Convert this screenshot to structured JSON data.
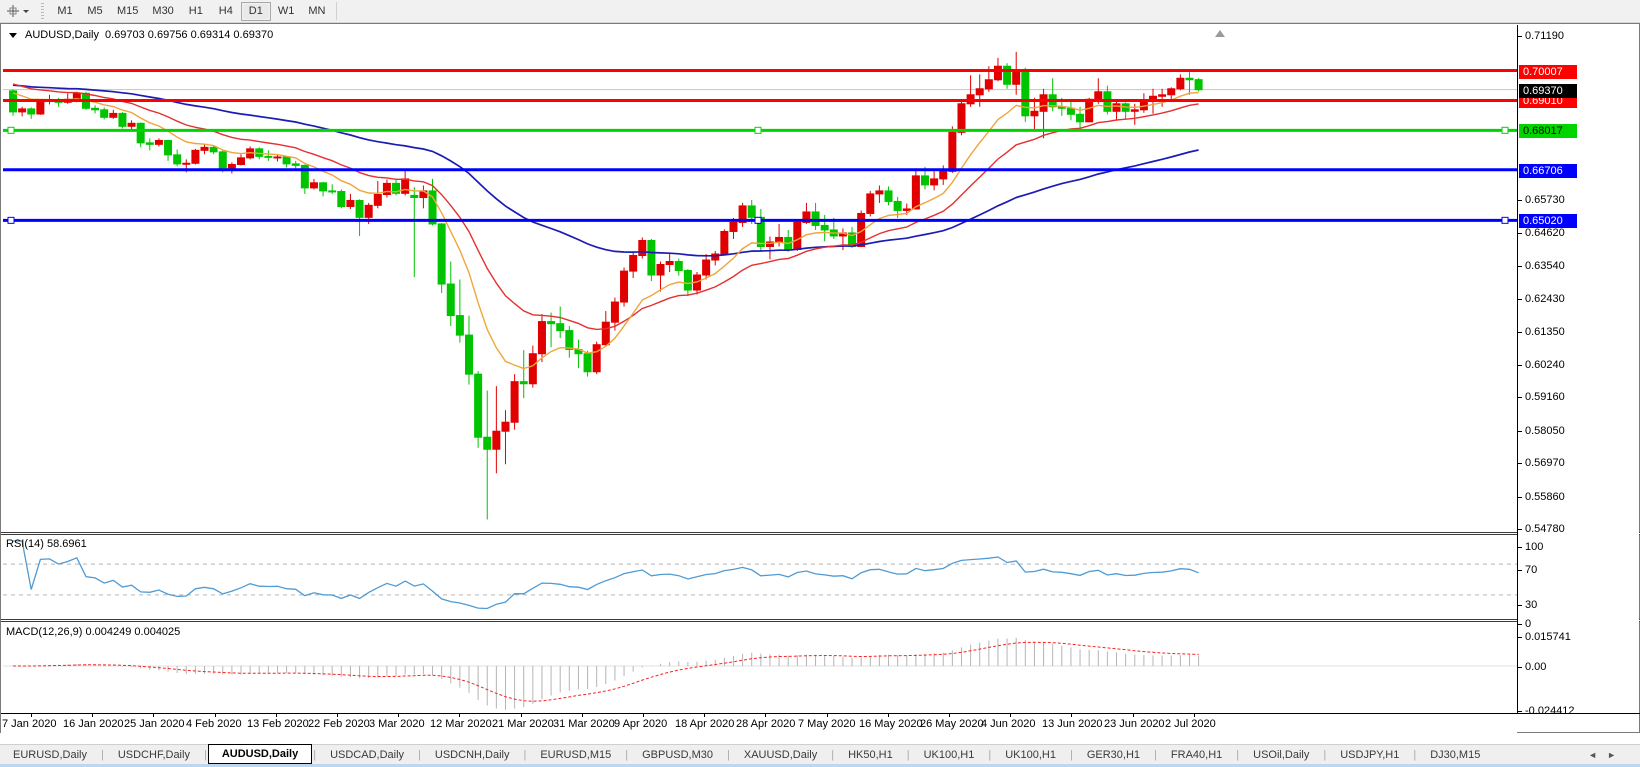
{
  "toolbar": {
    "tool_icon": "crosshair-icon",
    "timeframes": [
      "M1",
      "M5",
      "M15",
      "M30",
      "H1",
      "H4",
      "D1",
      "W1",
      "MN"
    ],
    "active_timeframe": "D1"
  },
  "chart": {
    "title_symbol": "AUDUSD,Daily",
    "title_ohlc": "0.69703 0.69756 0.69314 0.69370"
  },
  "chart_data": {
    "type": "candlestick",
    "symbol": "AUDUSD",
    "period": "Daily",
    "ohlc_display": {
      "open": "0.69703",
      "high": "0.69756",
      "low": "0.69314",
      "close": "0.69370"
    },
    "color_convention": "red-up-green-down",
    "x_labels": [
      "7 Jan 2020",
      "16 Jan 2020",
      "25 Jan 2020",
      "4 Feb 2020",
      "13 Feb 2020",
      "22 Feb 2020",
      "3 Mar 2020",
      "12 Mar 2020",
      "21 Mar 2020",
      "31 Mar 2020",
      "9 Apr 2020",
      "18 Apr 2020",
      "28 Apr 2020",
      "7 May 2020",
      "16 May 2020",
      "26 May 2020",
      "4 Jun 2020",
      "13 Jun 2020",
      "23 Jun 2020",
      "2 Jul 2020"
    ],
    "y_axis_ticks": [
      "0.71190",
      "0.65730",
      "0.64620",
      "0.63540",
      "0.62430",
      "0.61350",
      "0.60240",
      "0.59160",
      "0.58050",
      "0.56970",
      "0.55860",
      "0.54780"
    ],
    "candles": [
      [
        0.6933,
        0.6938,
        0.685,
        0.6863
      ],
      [
        0.6863,
        0.688,
        0.6848,
        0.6873
      ],
      [
        0.6873,
        0.6878,
        0.684,
        0.6856
      ],
      [
        0.6856,
        0.6905,
        0.6853,
        0.69
      ],
      [
        0.69,
        0.692,
        0.6888,
        0.6902
      ],
      [
        0.6902,
        0.691,
        0.688,
        0.6895
      ],
      [
        0.6895,
        0.6925,
        0.689,
        0.6905
      ],
      [
        0.6905,
        0.693,
        0.6895,
        0.6925
      ],
      [
        0.6925,
        0.693,
        0.687,
        0.6875
      ],
      [
        0.6875,
        0.6885,
        0.6858,
        0.687
      ],
      [
        0.687,
        0.6878,
        0.6838,
        0.6845
      ],
      [
        0.6845,
        0.687,
        0.684,
        0.6858
      ],
      [
        0.6858,
        0.6862,
        0.6808,
        0.6815
      ],
      [
        0.6815,
        0.6835,
        0.68,
        0.6825
      ],
      [
        0.6825,
        0.6828,
        0.6745,
        0.676
      ],
      [
        0.676,
        0.6775,
        0.6735,
        0.6755
      ],
      [
        0.6755,
        0.6775,
        0.6748,
        0.6768
      ],
      [
        0.6768,
        0.677,
        0.67,
        0.672
      ],
      [
        0.672,
        0.6738,
        0.6682,
        0.669
      ],
      [
        0.669,
        0.6705,
        0.6662,
        0.6692
      ],
      [
        0.6692,
        0.674,
        0.6688,
        0.6735
      ],
      [
        0.6735,
        0.6755,
        0.6722,
        0.6745
      ],
      [
        0.6745,
        0.6752,
        0.6722,
        0.673
      ],
      [
        0.673,
        0.6735,
        0.6662,
        0.667
      ],
      [
        0.667,
        0.6695,
        0.6658,
        0.6688
      ],
      [
        0.6688,
        0.6722,
        0.6685,
        0.671
      ],
      [
        0.671,
        0.6748,
        0.6705,
        0.674
      ],
      [
        0.674,
        0.6745,
        0.6705,
        0.6715
      ],
      [
        0.6715,
        0.6735,
        0.67,
        0.6712
      ],
      [
        0.6712,
        0.6722,
        0.6698,
        0.6713
      ],
      [
        0.6713,
        0.6715,
        0.6678,
        0.669
      ],
      [
        0.669,
        0.67,
        0.6668,
        0.6685
      ],
      [
        0.6685,
        0.6688,
        0.659,
        0.661
      ],
      [
        0.661,
        0.664,
        0.6605,
        0.6627
      ],
      [
        0.6627,
        0.663,
        0.6582,
        0.66
      ],
      [
        0.66,
        0.6622,
        0.659,
        0.6598
      ],
      [
        0.6598,
        0.6605,
        0.6542,
        0.6548
      ],
      [
        0.6548,
        0.659,
        0.654,
        0.6568
      ],
      [
        0.6568,
        0.6572,
        0.645,
        0.6512
      ],
      [
        0.6512,
        0.656,
        0.649,
        0.6552
      ],
      [
        0.6552,
        0.6633,
        0.6542,
        0.6588
      ],
      [
        0.6588,
        0.6638,
        0.6578,
        0.6625
      ],
      [
        0.6625,
        0.664,
        0.6585,
        0.6592
      ],
      [
        0.6592,
        0.6668,
        0.6585,
        0.664
      ],
      [
        0.6585,
        0.6612,
        0.6313,
        0.6578
      ],
      [
        0.6578,
        0.6618,
        0.6542,
        0.66
      ],
      [
        0.66,
        0.664,
        0.6485,
        0.649
      ],
      [
        0.649,
        0.6493,
        0.626,
        0.629
      ],
      [
        0.629,
        0.6365,
        0.615,
        0.6185
      ],
      [
        0.6185,
        0.6305,
        0.6095,
        0.612
      ],
      [
        0.612,
        0.6185,
        0.5955,
        0.599
      ],
      [
        0.599,
        0.6,
        0.5745,
        0.578
      ],
      [
        0.578,
        0.5935,
        0.5506,
        0.574
      ],
      [
        0.574,
        0.595,
        0.566,
        0.58
      ],
      [
        0.58,
        0.587,
        0.569,
        0.583
      ],
      [
        0.583,
        0.599,
        0.5805,
        0.5965
      ],
      [
        0.5965,
        0.607,
        0.591,
        0.5958
      ],
      [
        0.5958,
        0.6085,
        0.5945,
        0.6058
      ],
      [
        0.6058,
        0.619,
        0.603,
        0.6165
      ],
      [
        0.6165,
        0.6195,
        0.608,
        0.6158
      ],
      [
        0.6158,
        0.6215,
        0.611,
        0.6135
      ],
      [
        0.6135,
        0.615,
        0.6045,
        0.6072
      ],
      [
        0.6072,
        0.6105,
        0.601,
        0.6058
      ],
      [
        0.6058,
        0.6068,
        0.5982,
        0.5998
      ],
      [
        0.5998,
        0.6098,
        0.599,
        0.6088
      ],
      [
        0.6088,
        0.62,
        0.6085,
        0.6163
      ],
      [
        0.6163,
        0.6245,
        0.6135,
        0.623
      ],
      [
        0.623,
        0.6345,
        0.6215,
        0.6333
      ],
      [
        0.6333,
        0.6395,
        0.631,
        0.6385
      ],
      [
        0.6385,
        0.6445,
        0.6375,
        0.6435
      ],
      [
        0.6435,
        0.644,
        0.63,
        0.632
      ],
      [
        0.632,
        0.6365,
        0.6265,
        0.6355
      ],
      [
        0.6355,
        0.639,
        0.633,
        0.6365
      ],
      [
        0.6365,
        0.6375,
        0.6318,
        0.6335
      ],
      [
        0.6335,
        0.634,
        0.625,
        0.627
      ],
      [
        0.627,
        0.633,
        0.6255,
        0.632
      ],
      [
        0.632,
        0.639,
        0.6305,
        0.637
      ],
      [
        0.637,
        0.64,
        0.6352,
        0.639
      ],
      [
        0.639,
        0.6472,
        0.6385,
        0.6465
      ],
      [
        0.6465,
        0.651,
        0.644,
        0.6495
      ],
      [
        0.6495,
        0.656,
        0.648,
        0.655
      ],
      [
        0.655,
        0.657,
        0.649,
        0.6512
      ],
      [
        0.6512,
        0.654,
        0.6402,
        0.6415
      ],
      [
        0.6415,
        0.6448,
        0.6372,
        0.643
      ],
      [
        0.643,
        0.649,
        0.6415,
        0.6445
      ],
      [
        0.6445,
        0.647,
        0.6398,
        0.6405
      ],
      [
        0.6405,
        0.6505,
        0.64,
        0.6495
      ],
      [
        0.6495,
        0.656,
        0.649,
        0.653
      ],
      [
        0.653,
        0.656,
        0.647,
        0.6485
      ],
      [
        0.6485,
        0.652,
        0.6432,
        0.647
      ],
      [
        0.647,
        0.651,
        0.644,
        0.645
      ],
      [
        0.645,
        0.6475,
        0.6403,
        0.646
      ],
      [
        0.646,
        0.648,
        0.641,
        0.6415
      ],
      [
        0.6415,
        0.6535,
        0.6413,
        0.6525
      ],
      [
        0.6525,
        0.66,
        0.6515,
        0.659
      ],
      [
        0.659,
        0.6618,
        0.656,
        0.66
      ],
      [
        0.66,
        0.6615,
        0.6552,
        0.6565
      ],
      [
        0.6565,
        0.658,
        0.651,
        0.6535
      ],
      [
        0.6535,
        0.6558,
        0.652,
        0.654
      ],
      [
        0.654,
        0.6675,
        0.6538,
        0.665
      ],
      [
        0.665,
        0.668,
        0.6605,
        0.662
      ],
      [
        0.662,
        0.6665,
        0.6602,
        0.664
      ],
      [
        0.664,
        0.6685,
        0.662,
        0.6665
      ],
      [
        0.6665,
        0.6815,
        0.666,
        0.6795
      ],
      [
        0.6795,
        0.69,
        0.6785,
        0.689
      ],
      [
        0.689,
        0.6985,
        0.688,
        0.692
      ],
      [
        0.692,
        0.6988,
        0.688,
        0.694
      ],
      [
        0.694,
        0.7015,
        0.693,
        0.697
      ],
      [
        0.697,
        0.7043,
        0.6965,
        0.7015
      ],
      [
        0.7015,
        0.7025,
        0.694,
        0.6955
      ],
      [
        0.6955,
        0.7063,
        0.692,
        0.7
      ],
      [
        0.7,
        0.701,
        0.683,
        0.685
      ],
      [
        0.685,
        0.691,
        0.68,
        0.6865
      ],
      [
        0.6865,
        0.694,
        0.6775,
        0.692
      ],
      [
        0.692,
        0.6975,
        0.6865,
        0.688
      ],
      [
        0.688,
        0.691,
        0.685,
        0.6875
      ],
      [
        0.6875,
        0.69,
        0.6835,
        0.6855
      ],
      [
        0.6855,
        0.688,
        0.6805,
        0.683
      ],
      [
        0.683,
        0.691,
        0.6828,
        0.6905
      ],
      [
        0.6905,
        0.6975,
        0.689,
        0.693
      ],
      [
        0.693,
        0.695,
        0.6855,
        0.6865
      ],
      [
        0.6865,
        0.6905,
        0.6835,
        0.689
      ],
      [
        0.689,
        0.6895,
        0.684,
        0.6865
      ],
      [
        0.6865,
        0.689,
        0.682,
        0.687
      ],
      [
        0.687,
        0.6925,
        0.686,
        0.69
      ],
      [
        0.69,
        0.694,
        0.6857,
        0.6915
      ],
      [
        0.6915,
        0.694,
        0.688,
        0.692
      ],
      [
        0.692,
        0.6945,
        0.69,
        0.694
      ],
      [
        0.694,
        0.6988,
        0.6935,
        0.6975
      ],
      [
        0.6975,
        0.6998,
        0.692,
        0.697
      ],
      [
        0.69703,
        0.69756,
        0.69314,
        0.6937
      ]
    ],
    "hlines": [
      {
        "price": 0.70007,
        "label": "0.70007",
        "color": "#ff0000",
        "width": 3,
        "selected": false,
        "text": "#ffffff"
      },
      {
        "price": 0.6901,
        "label": "0.69010",
        "color": "#ff0000",
        "width": 3,
        "selected": false,
        "text": "#ffffff"
      },
      {
        "price": 0.68017,
        "label": "0.68017",
        "color": "#00d500",
        "width": 3,
        "selected": true,
        "text": "#000000"
      },
      {
        "price": 0.66706,
        "label": "0.66706",
        "color": "#0000ff",
        "width": 3,
        "selected": false,
        "text": "#ffffff"
      },
      {
        "price": 0.6502,
        "label": "0.65020",
        "color": "#0000ff",
        "width": 3,
        "selected": true,
        "text": "#ffffff"
      }
    ],
    "current_price": {
      "value": 0.6937,
      "label": "0.69370"
    },
    "indicators": {
      "moving_averages": [
        {
          "period": 10,
          "color": "#efa53c"
        },
        {
          "period": 21,
          "color": "#e53030"
        },
        {
          "period": 60,
          "color": "#1c1cb4"
        }
      ],
      "rsi": {
        "label": "RSI(14) 58.6961",
        "value": "58.6961",
        "axis_ticks": [
          "100",
          "70",
          "30",
          "0"
        ],
        "levels": [
          70,
          30
        ],
        "color": "#4f9bd5"
      },
      "macd": {
        "label": "MACD(12,26,9) 0.004249 0.004025",
        "values": [
          "0.004249",
          "0.004025"
        ],
        "axis_ticks": [
          "0.015741",
          "0.00",
          "-0.024412"
        ],
        "hist_color": "#b4b4b4",
        "signal_color": "#ff2020"
      }
    },
    "candle_colors": {
      "up": "#e00000",
      "down": "#00c400"
    }
  },
  "tabs": {
    "items": [
      "EURUSD,Daily",
      "USDCHF,Daily",
      "AUDUSD,Daily",
      "USDCAD,Daily",
      "USDCNH,Daily",
      "EURUSD,M15",
      "GBPUSD,M30",
      "XAUUSD,Daily",
      "HK50,H1",
      "UK100,H1",
      "UK100,H1",
      "GER30,H1",
      "FRA40,H1",
      "USOil,Daily",
      "USDJPY,H1",
      "DJ30,M15"
    ],
    "active_index": 2,
    "scroll_left_icon": "tab-scroll-left-icon",
    "scroll_right_icon": "tab-scroll-right-icon"
  }
}
